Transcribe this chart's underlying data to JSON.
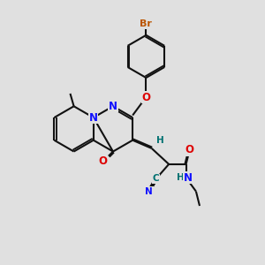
{
  "bg": "#e0e0e0",
  "bond_color": "#111111",
  "bond_lw": 1.5,
  "dbl_off": 0.035,
  "atom_colors": {
    "N": "#1010ff",
    "O": "#dd0000",
    "Br": "#bb5500",
    "C_teal": "#007070",
    "H_teal": "#007070"
  },
  "fs": 8.5,
  "fs_small": 7.5,
  "xlim": [
    0.3,
    5.8
  ],
  "ylim": [
    0.2,
    6.0
  ]
}
